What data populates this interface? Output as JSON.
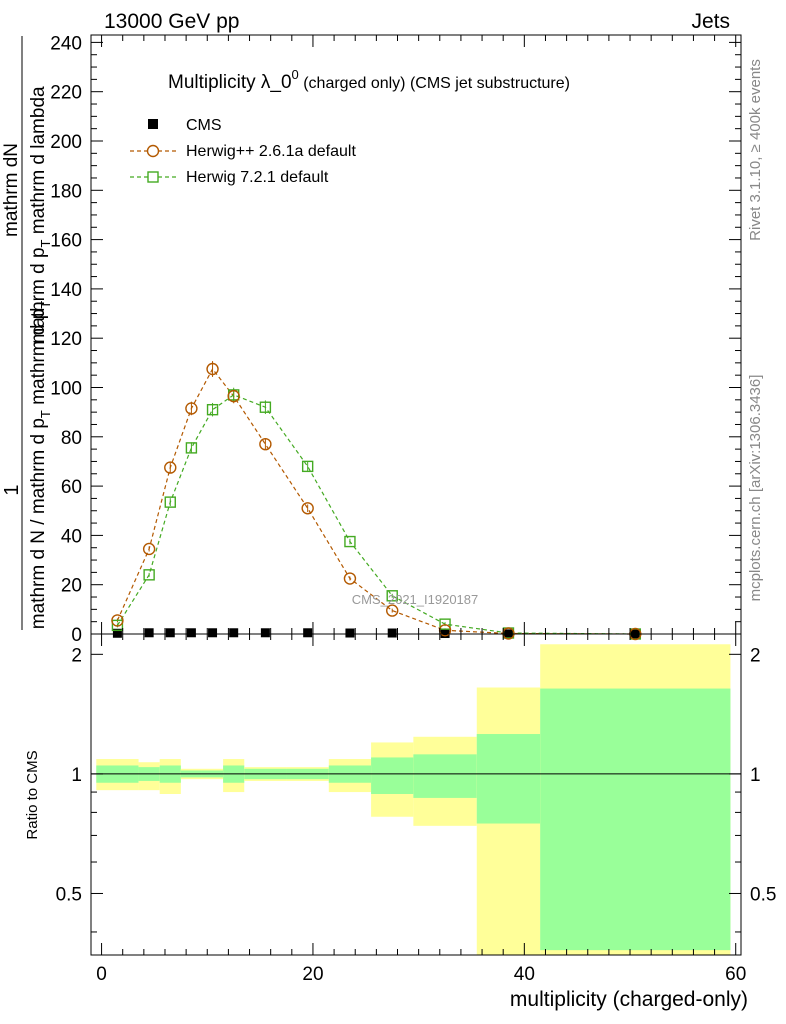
{
  "header": {
    "left": "13000 GeV pp",
    "right": "Jets"
  },
  "side_labels": {
    "rivet": "Rivet 3.1.10, ≥ 400k events",
    "mcplots": "mcplots.cern.ch [arXiv:1306.3436]"
  },
  "watermark": "CMS_2021_I1920187",
  "colors": {
    "herwig_pp": "#b35900",
    "herwig7": "#44aa22",
    "band_outer": "#ffff99",
    "band_inner": "#99ff99",
    "cms": "#000000"
  },
  "chart_data": [
    {
      "type": "scatter",
      "title_main": "Multiplicity λ_0",
      "title_sup": "0",
      "title_rest": " (charged only) (CMS jet substructure)",
      "ylabel_parts": {
        "one": "1",
        "num": "mathrm dN",
        "den1": "mathrm d N / mathrm d p",
        "den1_sub": "T",
        "den2": "mathrm d p",
        "den2_sub": "T",
        "den3": "mathrm d lambda",
        "numer_tail": "mathrm d p",
        "numer_tail_sub": "T",
        "numer_tail2": "mathrm d lambda"
      },
      "xlim": [
        -1,
        60.5
      ],
      "ylim": [
        0,
        243
      ],
      "y_ticks": [
        0,
        20,
        40,
        60,
        80,
        100,
        120,
        140,
        160,
        180,
        200,
        220,
        240
      ],
      "legend": [
        {
          "name": "CMS",
          "marker": "square-filled"
        },
        {
          "name": "Herwig++ 2.6.1a default",
          "marker": "circle-open"
        },
        {
          "name": "Herwig 7.2.1 default",
          "marker": "square-open"
        }
      ],
      "series": [
        {
          "name": "CMS",
          "x": [
            1.5,
            4.5,
            6.5,
            8.5,
            10.5,
            12.5,
            15.5,
            19.5,
            23.5,
            27.5,
            32.5,
            38.5,
            50.5
          ],
          "y": [
            0.3,
            0.5,
            0.5,
            0.5,
            0.5,
            0.5,
            0.5,
            0.5,
            0.4,
            0.4,
            0.2,
            0.05,
            0.0
          ]
        },
        {
          "name": "Herwig++ 2.6.1a default",
          "x": [
            1.5,
            4.5,
            6.5,
            8.5,
            10.5,
            12.5,
            15.5,
            19.5,
            23.5,
            27.5,
            32.5,
            38.5,
            50.5
          ],
          "y": [
            5.5,
            34.5,
            67.5,
            91.5,
            107.5,
            96.5,
            77.0,
            51.0,
            22.5,
            9.5,
            1.5,
            0.2,
            0.0
          ]
        },
        {
          "name": "Herwig 7.2.1 default",
          "x": [
            1.5,
            4.5,
            6.5,
            8.5,
            10.5,
            12.5,
            15.5,
            19.5,
            23.5,
            27.5,
            32.5,
            38.5,
            50.5
          ],
          "y": [
            3.5,
            24.0,
            53.5,
            75.5,
            91.0,
            97.0,
            92.0,
            68.0,
            37.5,
            15.5,
            4.0,
            0.4,
            0.0
          ]
        }
      ]
    },
    {
      "type": "area",
      "ylabel": "Ratio to CMS",
      "xlabel": "multiplicity (charged-only)",
      "xlim": [
        -1,
        60.5
      ],
      "ylim": [
        0.35,
        2.25
      ],
      "x_ticks": [
        0,
        20,
        40,
        60
      ],
      "y_ticks": [
        0.5,
        1,
        2
      ],
      "y_tick_labels": [
        "0.5",
        "1",
        "2"
      ],
      "bins": [
        {
          "lo": -0.5,
          "hi": 3.5,
          "outer": [
            0.91,
            1.09
          ],
          "inner": [
            0.95,
            1.05
          ]
        },
        {
          "lo": 3.5,
          "hi": 5.5,
          "outer": [
            0.91,
            1.07
          ],
          "inner": [
            0.96,
            1.04
          ]
        },
        {
          "lo": 5.5,
          "hi": 7.5,
          "outer": [
            0.89,
            1.09
          ],
          "inner": [
            0.95,
            1.05
          ]
        },
        {
          "lo": 7.5,
          "hi": 9.5,
          "outer": [
            0.97,
            1.03
          ],
          "inner": [
            0.98,
            1.02
          ]
        },
        {
          "lo": 9.5,
          "hi": 11.5,
          "outer": [
            0.97,
            1.03
          ],
          "inner": [
            0.98,
            1.02
          ]
        },
        {
          "lo": 11.5,
          "hi": 13.5,
          "outer": [
            0.9,
            1.09
          ],
          "inner": [
            0.95,
            1.05
          ]
        },
        {
          "lo": 13.5,
          "hi": 17.5,
          "outer": [
            0.96,
            1.04
          ],
          "inner": [
            0.97,
            1.03
          ]
        },
        {
          "lo": 17.5,
          "hi": 21.5,
          "outer": [
            0.96,
            1.04
          ],
          "inner": [
            0.97,
            1.03
          ]
        },
        {
          "lo": 21.5,
          "hi": 25.5,
          "outer": [
            0.9,
            1.09
          ],
          "inner": [
            0.95,
            1.05
          ]
        },
        {
          "lo": 25.5,
          "hi": 29.5,
          "outer": [
            0.78,
            1.2
          ],
          "inner": [
            0.89,
            1.1
          ]
        },
        {
          "lo": 29.5,
          "hi": 35.5,
          "outer": [
            0.74,
            1.24
          ],
          "inner": [
            0.87,
            1.12
          ]
        },
        {
          "lo": 35.5,
          "hi": 41.5,
          "outer": [
            0.35,
            1.65
          ],
          "inner": [
            0.75,
            1.26
          ]
        },
        {
          "lo": 41.5,
          "hi": 59.5,
          "outer": [
            0.35,
            2.12
          ],
          "inner": [
            0.36,
            1.64
          ]
        }
      ]
    }
  ]
}
